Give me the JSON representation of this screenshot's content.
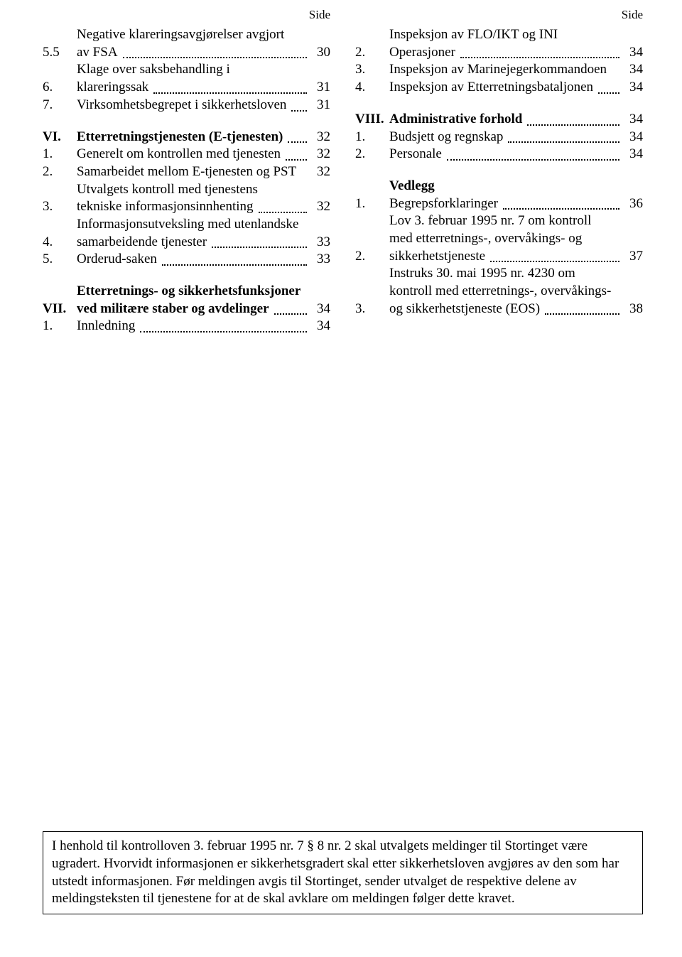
{
  "side_label": "Side",
  "left": {
    "blocks": [
      {
        "type": "row",
        "num": "5.5",
        "lines": [
          "Negative klareringsavgjørelser avgjort"
        ],
        "last": "av FSA",
        "page": "30",
        "bold": false
      },
      {
        "type": "row",
        "num": "6.",
        "lines": [
          "Klage over saksbehandling i"
        ],
        "last": "klareringssak",
        "page": "31",
        "bold": false
      },
      {
        "type": "row-single",
        "num": "7.",
        "last": "Virksomhetsbegrepet i sikkerhetsloven",
        "dots": true,
        "page": "31",
        "bold": false
      },
      {
        "type": "gap"
      },
      {
        "type": "row-single",
        "num": "VI.",
        "last": "Etterretningstjenesten (E-tjenesten)",
        "dots": true,
        "page": "32",
        "bold": true
      },
      {
        "type": "row-single",
        "num": "1.",
        "last": "Generelt om kontrollen med tjenesten",
        "dots": true,
        "page": "32",
        "bold": false
      },
      {
        "type": "row-single",
        "num": "2.",
        "last": "Samarbeidet mellom E-tjenesten og PST",
        "dots": false,
        "page": "32",
        "bold": false
      },
      {
        "type": "row",
        "num": "3.",
        "lines": [
          "Utvalgets kontroll med tjenestens"
        ],
        "last": "tekniske informasjonsinnhenting",
        "page": "32",
        "bold": false
      },
      {
        "type": "row",
        "num": "4.",
        "lines": [
          "Informasjonsutveksling med utenlandske"
        ],
        "last": "samarbeidende tjenester",
        "page": "33",
        "bold": false
      },
      {
        "type": "row-single",
        "num": "5.",
        "last": "Orderud-saken",
        "dots": true,
        "page": "33",
        "bold": false
      },
      {
        "type": "gap"
      },
      {
        "type": "row",
        "num": "VII.",
        "lines": [
          "Etterretnings- og sikkerhetsfunksjoner"
        ],
        "last": "ved militære staber og avdelinger",
        "page": "34",
        "bold": true
      },
      {
        "type": "row-single",
        "num": "1.",
        "last": "Innledning",
        "dots": true,
        "page": "34",
        "bold": false
      }
    ]
  },
  "right": {
    "blocks": [
      {
        "type": "row",
        "num": "2.",
        "lines": [
          "Inspeksjon av FLO/IKT og INI"
        ],
        "last": "Operasjoner",
        "page": "34",
        "bold": false
      },
      {
        "type": "row-single",
        "num": "3.",
        "last": "Inspeksjon av Marinejegerkommandoen",
        "dots": false,
        "page": "34",
        "bold": false
      },
      {
        "type": "row-single",
        "num": "4.",
        "last": "Inspeksjon av Etterretningsbataljonen",
        "dots": true,
        "page": "34",
        "bold": false
      },
      {
        "type": "gap"
      },
      {
        "type": "row-single",
        "num": "VIII.",
        "last": "Administrative forhold",
        "dots": true,
        "page": "34",
        "bold": true
      },
      {
        "type": "row-single",
        "num": "1.",
        "last": "Budsjett og regnskap",
        "dots": true,
        "page": "34",
        "bold": false
      },
      {
        "type": "row-single",
        "num": "2.",
        "last": "Personale",
        "dots": true,
        "page": "34",
        "bold": false
      },
      {
        "type": "gap"
      },
      {
        "type": "heading",
        "text": "Vedlegg"
      },
      {
        "type": "row-single",
        "num": "1.",
        "last": "Begrepsforklaringer",
        "dots": true,
        "page": "36",
        "bold": false
      },
      {
        "type": "row",
        "num": "2.",
        "lines": [
          "Lov 3. februar 1995 nr. 7 om kontroll",
          "med etterretnings-, overvåkings- og"
        ],
        "last": "sikkerhetstjeneste",
        "page": "37",
        "bold": false
      },
      {
        "type": "row",
        "num": "3.",
        "lines": [
          "Instruks 30. mai 1995 nr. 4230 om",
          "kontroll med etterretnings-, overvåkings-"
        ],
        "last": "og sikkerhetstjeneste (EOS)",
        "page": "38",
        "bold": false
      }
    ]
  },
  "footer": "I henhold til kontrolloven 3. februar 1995 nr. 7 § 8 nr. 2 skal utvalgets meldinger til Stortinget være ugradert. Hvorvidt informasjonen er sikkerhetsgradert skal etter sikkerhetsloven avgjøres av den som har utstedt informasjonen. Før meldingen avgis til Stortinget, sender utvalget de respektive delene av meldingsteksten til tjenestene for at de skal avklare om meldingen følger dette kravet."
}
